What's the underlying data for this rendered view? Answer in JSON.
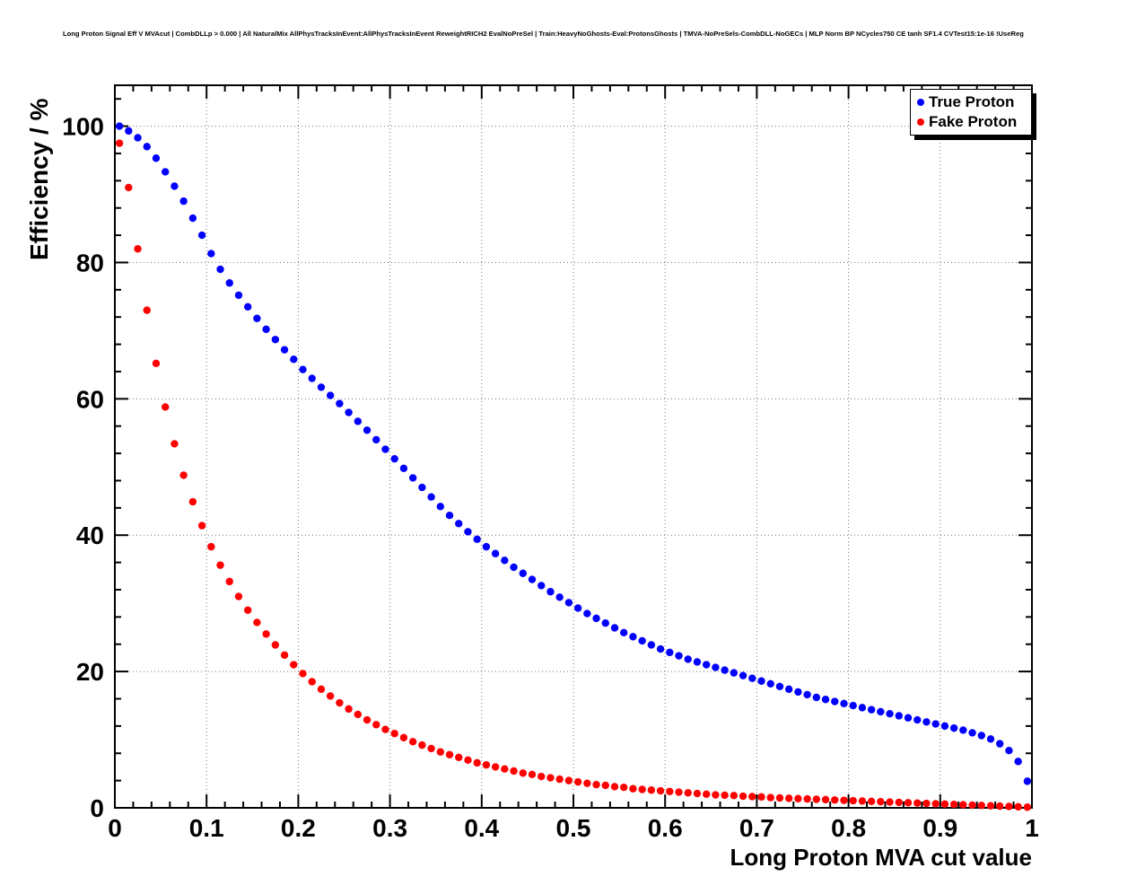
{
  "title": "Long Proton Signal Eff V MVAcut | CombDLLp > 0.000 | All NaturalMix AllPhysTracksInEvent:AllPhysTracksInEvent ReweightRICH2 EvalNoPreSel | Train:HeavyNoGhosts-Eval:ProtonsGhosts | TMVA-NoPreSels-CombDLL-NoGECs | MLP Norm BP NCycles750 CE tanh SF1.4 CVTest15:1e-16 !UseReg",
  "chart_data": {
    "type": "scatter",
    "title": "Long Proton Signal Eff V MVAcut | CombDLLp > 0.000 | All NaturalMix AllPhysTracksInEvent:AllPhysTracksInEvent ReweightRICH2 EvalNoPreSel | Train:HeavyNoGhosts-Eval:ProtonsGhosts | TMVA-NoPreSels-CombDLL-NoGECs | MLP Norm BP NCycles750 CE tanh SF1.4 CVTest15:1e-16 !UseReg",
    "xlabel": "Long Proton MVA cut value",
    "ylabel": "Efficiency / %",
    "xlim": [
      0,
      1
    ],
    "ylim": [
      0,
      106
    ],
    "x_ticks": [
      0,
      0.1,
      0.2,
      0.3,
      0.4,
      0.5,
      0.6,
      0.7,
      0.8,
      0.9,
      1
    ],
    "x_tick_labels": [
      "0",
      "0.1",
      "0.2",
      "0.3",
      "0.4",
      "0.5",
      "0.6",
      "0.7",
      "0.8",
      "0.9",
      "1"
    ],
    "y_ticks": [
      0,
      20,
      40,
      60,
      80,
      100
    ],
    "y_tick_labels": [
      "0",
      "20",
      "40",
      "60",
      "80",
      "100"
    ],
    "x_minor_step": 0.02,
    "y_minor_step": 4,
    "grid": "dotted-major",
    "marker": "filled-circle",
    "legend": {
      "position": "top-right",
      "entries": [
        {
          "label": "True Proton",
          "color": "#0000ff"
        },
        {
          "label": "Fake Proton",
          "color": "#ff0000"
        }
      ]
    },
    "x": [
      0.005,
      0.015,
      0.025,
      0.035,
      0.045,
      0.055,
      0.065,
      0.075,
      0.085,
      0.095,
      0.105,
      0.115,
      0.125,
      0.135,
      0.145,
      0.155,
      0.165,
      0.175,
      0.185,
      0.195,
      0.205,
      0.215,
      0.225,
      0.235,
      0.245,
      0.255,
      0.265,
      0.275,
      0.285,
      0.295,
      0.305,
      0.315,
      0.325,
      0.335,
      0.345,
      0.355,
      0.365,
      0.375,
      0.385,
      0.395,
      0.405,
      0.415,
      0.425,
      0.435,
      0.445,
      0.455,
      0.465,
      0.475,
      0.485,
      0.495,
      0.505,
      0.515,
      0.525,
      0.535,
      0.545,
      0.555,
      0.565,
      0.575,
      0.585,
      0.595,
      0.605,
      0.615,
      0.625,
      0.635,
      0.645,
      0.655,
      0.665,
      0.675,
      0.685,
      0.695,
      0.705,
      0.715,
      0.725,
      0.735,
      0.745,
      0.755,
      0.765,
      0.775,
      0.785,
      0.795,
      0.805,
      0.815,
      0.825,
      0.835,
      0.845,
      0.855,
      0.865,
      0.875,
      0.885,
      0.895,
      0.905,
      0.915,
      0.925,
      0.935,
      0.945,
      0.955,
      0.965,
      0.975,
      0.985,
      0.995
    ],
    "series": [
      {
        "name": "True Proton",
        "color": "#0000ff",
        "values": [
          100.0,
          99.3,
          98.3,
          97.0,
          95.3,
          93.3,
          91.2,
          89.0,
          86.5,
          84.0,
          81.3,
          79.0,
          77.0,
          75.2,
          73.5,
          71.8,
          70.2,
          68.7,
          67.2,
          65.8,
          64.3,
          63.0,
          61.7,
          60.5,
          59.3,
          58.0,
          56.7,
          55.4,
          54.0,
          52.6,
          51.2,
          49.8,
          48.4,
          47.0,
          45.6,
          44.2,
          42.9,
          41.7,
          40.5,
          39.4,
          38.3,
          37.3,
          36.3,
          35.3,
          34.4,
          33.5,
          32.6,
          31.7,
          30.9,
          30.1,
          29.3,
          28.5,
          27.8,
          27.1,
          26.4,
          25.7,
          25.1,
          24.5,
          23.9,
          23.3,
          22.8,
          22.3,
          21.8,
          21.4,
          21.0,
          20.6,
          20.2,
          19.8,
          19.4,
          19.0,
          18.6,
          18.2,
          17.8,
          17.4,
          17.0,
          16.6,
          16.2,
          15.9,
          15.6,
          15.3,
          15.0,
          14.7,
          14.4,
          14.1,
          13.8,
          13.5,
          13.2,
          12.9,
          12.6,
          12.3,
          12.0,
          11.7,
          11.4,
          11.0,
          10.6,
          10.1,
          9.4,
          8.4,
          6.8,
          3.9
        ]
      },
      {
        "name": "Fake Proton",
        "color": "#ff0000",
        "values": [
          97.5,
          91.0,
          82.0,
          73.0,
          65.2,
          58.8,
          53.4,
          48.8,
          44.9,
          41.4,
          38.3,
          35.6,
          33.2,
          31.0,
          29.0,
          27.2,
          25.5,
          23.9,
          22.4,
          21.0,
          19.7,
          18.5,
          17.4,
          16.4,
          15.4,
          14.5,
          13.7,
          12.9,
          12.2,
          11.5,
          10.9,
          10.3,
          9.7,
          9.2,
          8.7,
          8.2,
          7.8,
          7.4,
          7.0,
          6.6,
          6.3,
          6.0,
          5.7,
          5.4,
          5.1,
          4.9,
          4.6,
          4.4,
          4.2,
          4.0,
          3.8,
          3.6,
          3.4,
          3.3,
          3.1,
          3.0,
          2.8,
          2.7,
          2.6,
          2.5,
          2.4,
          2.3,
          2.2,
          2.1,
          2.0,
          1.9,
          1.85,
          1.8,
          1.7,
          1.65,
          1.6,
          1.5,
          1.45,
          1.4,
          1.35,
          1.3,
          1.25,
          1.2,
          1.15,
          1.1,
          1.05,
          1.0,
          0.95,
          0.9,
          0.85,
          0.8,
          0.75,
          0.7,
          0.65,
          0.6,
          0.55,
          0.5,
          0.45,
          0.4,
          0.35,
          0.3,
          0.25,
          0.2,
          0.15,
          0.1
        ]
      }
    ]
  }
}
